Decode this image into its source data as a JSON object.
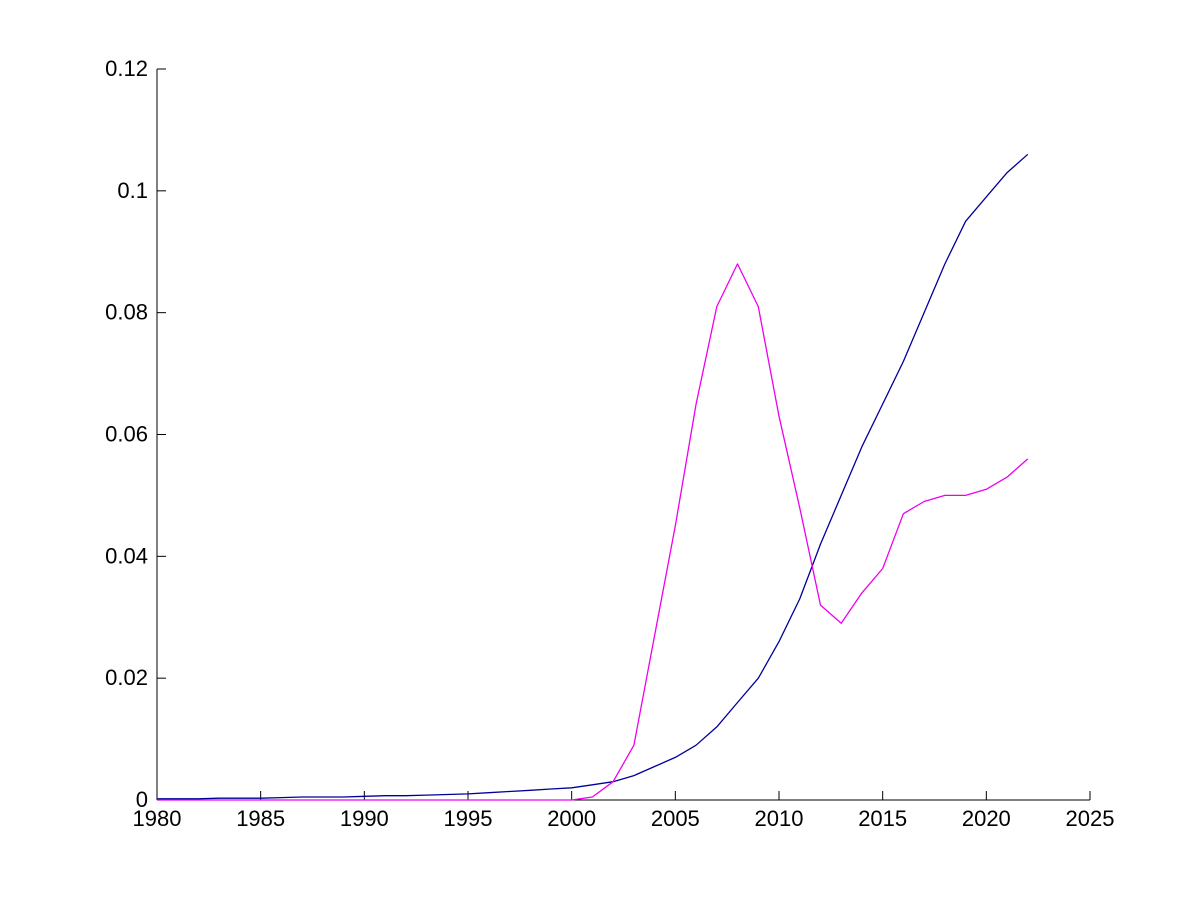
{
  "window": {
    "background_color": "#ffffff"
  },
  "chart_data": {
    "type": "line",
    "title": "",
    "xlabel": "",
    "ylabel": "",
    "xlim": [
      1980,
      2025
    ],
    "ylim": [
      0,
      0.12
    ],
    "grid": false,
    "legend_position": "none",
    "axis_color": "#000000",
    "tick_direction": "in",
    "xticks": [
      1980,
      1985,
      1990,
      1995,
      2000,
      2005,
      2010,
      2015,
      2020,
      2025
    ],
    "xtick_labels": [
      "1980",
      "1985",
      "1990",
      "1995",
      "2000",
      "2005",
      "2010",
      "2015",
      "2020",
      "2025"
    ],
    "yticks": [
      0,
      0.02,
      0.04,
      0.06,
      0.08,
      0.1,
      0.12
    ],
    "ytick_labels": [
      "0",
      "0.02",
      "0.04",
      "0.06",
      "0.08",
      "0.1",
      "0.12"
    ],
    "x": [
      1980,
      1981,
      1982,
      1983,
      1984,
      1985,
      1986,
      1987,
      1988,
      1989,
      1990,
      1991,
      1992,
      1993,
      1994,
      1995,
      1996,
      1997,
      1998,
      1999,
      2000,
      2001,
      2002,
      2003,
      2004,
      2005,
      2006,
      2007,
      2008,
      2009,
      2010,
      2011,
      2012,
      2013,
      2014,
      2015,
      2016,
      2017,
      2018,
      2019,
      2020,
      2021,
      2022
    ],
    "series": [
      {
        "name": "blue-line",
        "color": "#000099",
        "values": [
          0.0002,
          0.0002,
          0.0002,
          0.0003,
          0.0003,
          0.0003,
          0.0004,
          0.0005,
          0.0005,
          0.0005,
          0.0006,
          0.0007,
          0.0007,
          0.0008,
          0.0009,
          0.001,
          0.0012,
          0.0014,
          0.0016,
          0.0018,
          0.002,
          0.0025,
          0.003,
          0.004,
          0.0055,
          0.007,
          0.009,
          0.012,
          0.016,
          0.02,
          0.026,
          0.033,
          0.042,
          0.05,
          0.058,
          0.065,
          0.072,
          0.08,
          0.088,
          0.095,
          0.099,
          0.103,
          0.106
        ]
      },
      {
        "name": "magenta-line",
        "color": "#EE00EE",
        "values": [
          0,
          0,
          0,
          0,
          0,
          0,
          0,
          0,
          0,
          0,
          0,
          0,
          0,
          0,
          0,
          0,
          0,
          0,
          0,
          0,
          0,
          0.0005,
          0.003,
          0.009,
          0.027,
          0.045,
          0.065,
          0.081,
          0.088,
          0.081,
          0.063,
          0.048,
          0.032,
          0.029,
          0.034,
          0.038,
          0.047,
          0.049,
          0.05,
          0.05,
          0.051,
          0.053,
          0.056
        ]
      }
    ]
  }
}
